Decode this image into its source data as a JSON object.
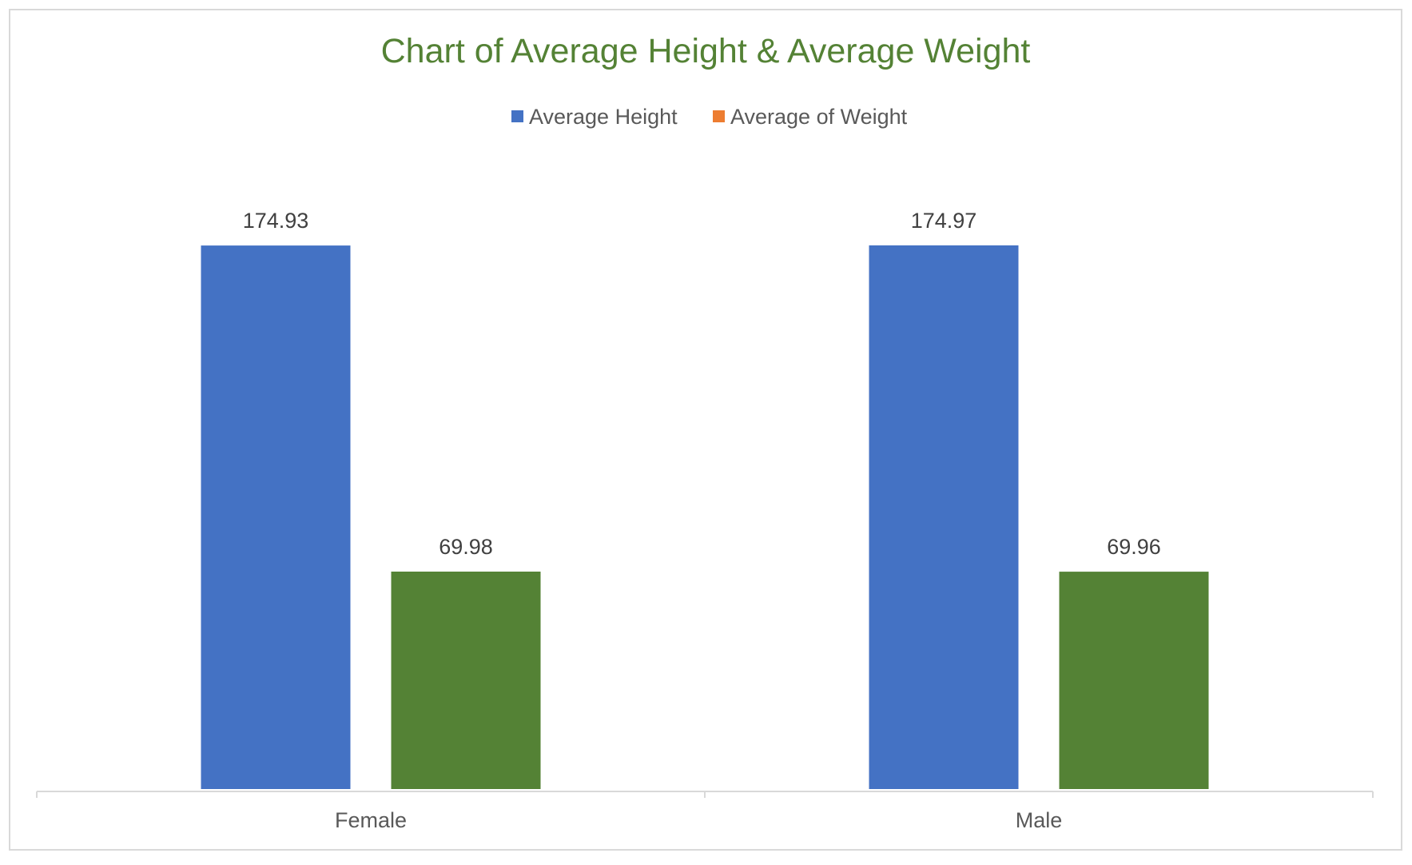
{
  "chart_data": {
    "type": "bar",
    "title": "Chart of Average Height & Average Weight",
    "categories": [
      "Female",
      "Male"
    ],
    "series": [
      {
        "name": "Average Height",
        "values": [
          174.93,
          174.97
        ],
        "bar_color": "#4472c4",
        "legend_color": "#4472c4"
      },
      {
        "name": "Average of Weight",
        "values": [
          69.98,
          69.96
        ],
        "bar_color": "#548235",
        "legend_color": "#ed7d31"
      }
    ],
    "data_labels": [
      [
        "174.93",
        "174.97"
      ],
      [
        "69.98",
        "69.96"
      ]
    ],
    "xlabel": "",
    "ylabel": "",
    "ylim": [
      0,
      200
    ],
    "grid": false,
    "legend_position": "top-center",
    "title_color": "#548235"
  }
}
